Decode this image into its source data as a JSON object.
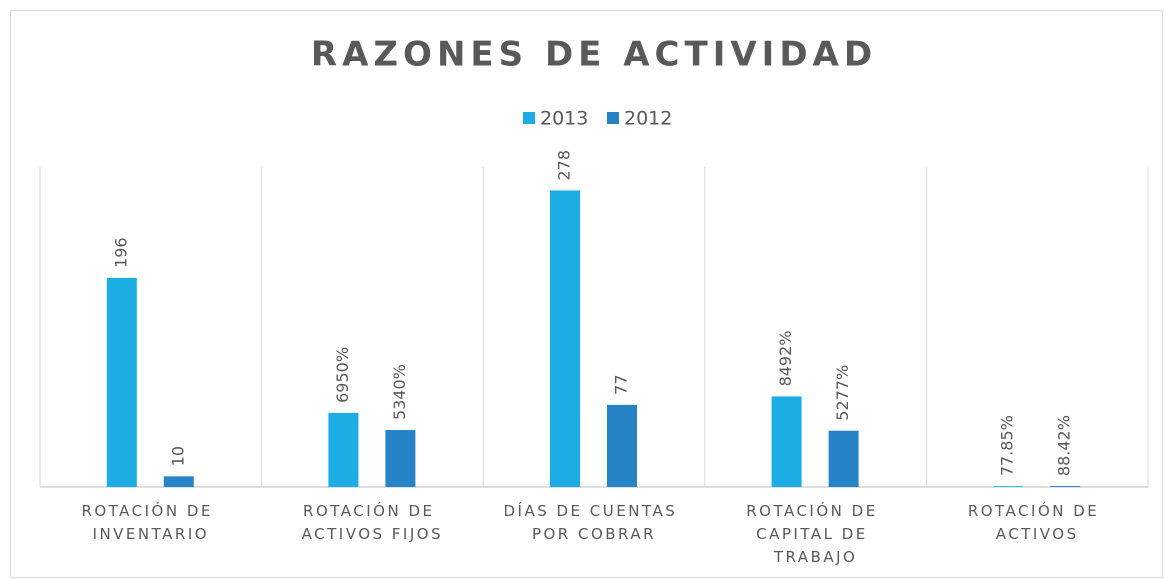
{
  "chart_data": {
    "type": "bar",
    "title": "RAZONES DE ACTIVIDAD",
    "categories": [
      "ROTACIÓN DE INVENTARIO",
      "ROTACIÓN DE ACTIVOS FIJOS",
      "DÍAS DE CUENTAS POR COBRAR",
      "ROTACIÓN DE CAPITAL DE TRABAJO",
      "ROTACIÓN DE ACTIVOS"
    ],
    "series": [
      {
        "name": "2013",
        "color": "#1cade4",
        "values": [
          196,
          69.5,
          278,
          84.92,
          0.7785
        ],
        "value_labels": [
          "196",
          "6950%",
          "278",
          "8492%",
          "77.85%"
        ]
      },
      {
        "name": "2012",
        "color": "#2683c6",
        "values": [
          10,
          53.4,
          77,
          52.77,
          0.8842
        ],
        "value_labels": [
          "10",
          "5340%",
          "77",
          "5277%",
          "88.42%"
        ]
      }
    ],
    "ylim": [
      0,
      300
    ],
    "legend": "top"
  }
}
